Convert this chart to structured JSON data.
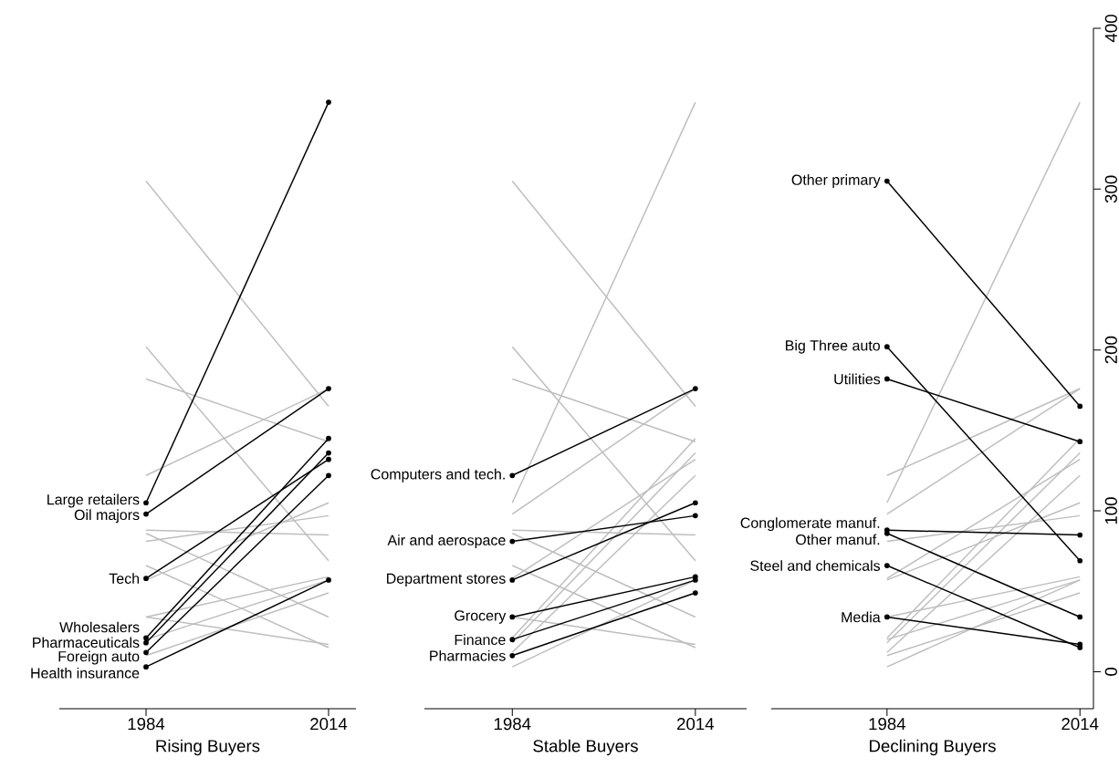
{
  "chart_data": [
    {
      "type": "line",
      "categories": [
        "1984",
        "2014"
      ],
      "xlabel": "Rising Buyers",
      "ylim": [
        -23,
        400
      ],
      "tick_labels": "x",
      "marker": "circle",
      "legend": false,
      "grid": false,
      "series": [
        {
          "color": "#bebebe",
          "marker": "none",
          "values": [
            122,
            176
          ]
        },
        {
          "color": "#bebebe",
          "marker": "none",
          "values": [
            81,
            97
          ]
        },
        {
          "color": "#bebebe",
          "marker": "none",
          "values": [
            57,
            105
          ]
        },
        {
          "color": "#bebebe",
          "marker": "none",
          "values": [
            34,
            59
          ]
        },
        {
          "color": "#bebebe",
          "marker": "none",
          "values": [
            20,
            57
          ]
        },
        {
          "color": "#bebebe",
          "marker": "none",
          "values": [
            10,
            49
          ]
        },
        {
          "color": "#bebebe",
          "marker": "none",
          "values": [
            305,
            165
          ]
        },
        {
          "color": "#bebebe",
          "marker": "none",
          "values": [
            202,
            69
          ]
        },
        {
          "color": "#bebebe",
          "marker": "none",
          "values": [
            182,
            143
          ]
        },
        {
          "color": "#bebebe",
          "marker": "none",
          "values": [
            88,
            85
          ]
        },
        {
          "color": "#bebebe",
          "marker": "none",
          "values": [
            86,
            34
          ]
        },
        {
          "color": "#bebebe",
          "marker": "none",
          "values": [
            66,
            15
          ]
        },
        {
          "color": "#bebebe",
          "marker": "none",
          "values": [
            34,
            17
          ]
        },
        {
          "name": "Large retailers",
          "color": "#000000",
          "values": [
            105,
            354
          ]
        },
        {
          "name": "Oil majors",
          "color": "#000000",
          "values": [
            98,
            176
          ]
        },
        {
          "name": "Tech",
          "color": "#000000",
          "values": [
            58,
            132
          ]
        },
        {
          "name": "Wholesalers",
          "color": "#000000",
          "values": [
            21,
            145
          ]
        },
        {
          "name": "Pharmaceuticals",
          "color": "#000000",
          "values": [
            18,
            136
          ]
        },
        {
          "name": "Foreign auto",
          "color": "#000000",
          "values": [
            12,
            122
          ]
        },
        {
          "name": "Health insurance",
          "color": "#000000",
          "values": [
            3,
            57
          ]
        }
      ]
    },
    {
      "type": "line",
      "categories": [
        "1984",
        "2014"
      ],
      "xlabel": "Stable Buyers",
      "ylim": [
        -23,
        400
      ],
      "tick_labels": "x",
      "marker": "circle",
      "legend": false,
      "grid": false,
      "series": [
        {
          "color": "#bebebe",
          "marker": "none",
          "values": [
            105,
            354
          ]
        },
        {
          "color": "#bebebe",
          "marker": "none",
          "values": [
            98,
            176
          ]
        },
        {
          "color": "#bebebe",
          "marker": "none",
          "values": [
            58,
            132
          ]
        },
        {
          "color": "#bebebe",
          "marker": "none",
          "values": [
            21,
            145
          ]
        },
        {
          "color": "#bebebe",
          "marker": "none",
          "values": [
            18,
            136
          ]
        },
        {
          "color": "#bebebe",
          "marker": "none",
          "values": [
            12,
            122
          ]
        },
        {
          "color": "#bebebe",
          "marker": "none",
          "values": [
            3,
            57
          ]
        },
        {
          "color": "#bebebe",
          "marker": "none",
          "values": [
            305,
            165
          ]
        },
        {
          "color": "#bebebe",
          "marker": "none",
          "values": [
            202,
            69
          ]
        },
        {
          "color": "#bebebe",
          "marker": "none",
          "values": [
            182,
            143
          ]
        },
        {
          "color": "#bebebe",
          "marker": "none",
          "values": [
            88,
            85
          ]
        },
        {
          "color": "#bebebe",
          "marker": "none",
          "values": [
            86,
            34
          ]
        },
        {
          "color": "#bebebe",
          "marker": "none",
          "values": [
            66,
            15
          ]
        },
        {
          "color": "#bebebe",
          "marker": "none",
          "values": [
            34,
            17
          ]
        },
        {
          "name": "Computers and tech.",
          "color": "#000000",
          "values": [
            122,
            176
          ]
        },
        {
          "name": "Air and aerospace",
          "color": "#000000",
          "values": [
            81,
            97
          ]
        },
        {
          "name": "Department stores",
          "color": "#000000",
          "values": [
            57,
            105
          ]
        },
        {
          "name": "Grocery",
          "color": "#000000",
          "values": [
            34,
            59
          ]
        },
        {
          "name": "Finance",
          "color": "#000000",
          "values": [
            20,
            57
          ]
        },
        {
          "name": "Pharmacies",
          "color": "#000000",
          "values": [
            10,
            49
          ]
        }
      ]
    },
    {
      "type": "line",
      "categories": [
        "1984",
        "2014"
      ],
      "xlabel": "Declining Buyers",
      "ylim": [
        -23,
        400
      ],
      "yticks": [
        0,
        100,
        200,
        300,
        400
      ],
      "marker": "circle",
      "legend": false,
      "grid": false,
      "series": [
        {
          "color": "#bebebe",
          "marker": "none",
          "values": [
            105,
            354
          ]
        },
        {
          "color": "#bebebe",
          "marker": "none",
          "values": [
            98,
            176
          ]
        },
        {
          "color": "#bebebe",
          "marker": "none",
          "values": [
            58,
            132
          ]
        },
        {
          "color": "#bebebe",
          "marker": "none",
          "values": [
            21,
            145
          ]
        },
        {
          "color": "#bebebe",
          "marker": "none",
          "values": [
            18,
            136
          ]
        },
        {
          "color": "#bebebe",
          "marker": "none",
          "values": [
            12,
            122
          ]
        },
        {
          "color": "#bebebe",
          "marker": "none",
          "values": [
            3,
            57
          ]
        },
        {
          "color": "#bebebe",
          "marker": "none",
          "values": [
            122,
            176
          ]
        },
        {
          "color": "#bebebe",
          "marker": "none",
          "values": [
            81,
            97
          ]
        },
        {
          "color": "#bebebe",
          "marker": "none",
          "values": [
            57,
            105
          ]
        },
        {
          "color": "#bebebe",
          "marker": "none",
          "values": [
            34,
            59
          ]
        },
        {
          "color": "#bebebe",
          "marker": "none",
          "values": [
            20,
            57
          ]
        },
        {
          "color": "#bebebe",
          "marker": "none",
          "values": [
            10,
            49
          ]
        },
        {
          "name": "Other primary",
          "color": "#000000",
          "values": [
            305,
            165
          ]
        },
        {
          "name": "Big Three auto",
          "color": "#000000",
          "values": [
            202,
            69
          ]
        },
        {
          "name": "Utilities",
          "color": "#000000",
          "values": [
            182,
            143
          ]
        },
        {
          "name": "Conglomerate manuf.",
          "color": "#000000",
          "values": [
            88,
            85
          ]
        },
        {
          "name": "Other manuf.",
          "color": "#000000",
          "values": [
            86,
            34
          ]
        },
        {
          "name": "Steel and chemicals",
          "color": "#000000",
          "values": [
            66,
            15
          ]
        },
        {
          "name": "Media",
          "color": "#000000",
          "values": [
            34,
            17
          ]
        }
      ]
    }
  ]
}
